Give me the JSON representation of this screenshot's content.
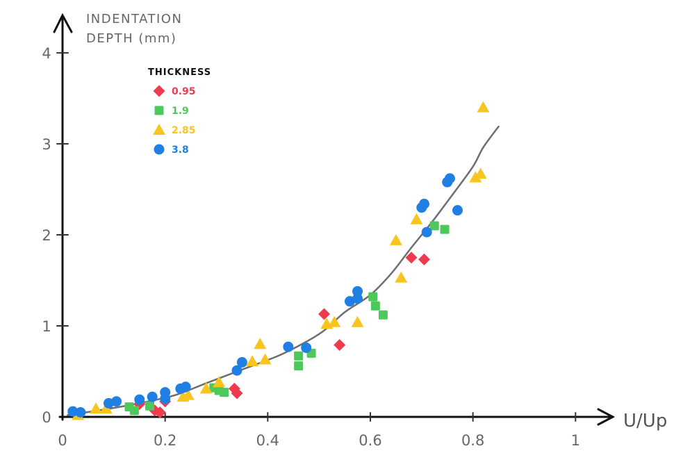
{
  "chart_data": {
    "type": "scatter",
    "xlabel": "U/Up",
    "ylabel": "INDENTATION DEPTH (mm)",
    "xlim": [
      0,
      1.07
    ],
    "ylim": [
      0,
      4.39
    ],
    "x_ticks": [
      0,
      0.2,
      0.4,
      0.6,
      0.8,
      1
    ],
    "x_tick_labels": [
      "0",
      "0.2",
      "0.4",
      "0.6",
      "0.8",
      "1"
    ],
    "y_ticks": [
      0,
      1,
      2,
      3,
      4
    ],
    "y_tick_labels": [
      "0",
      "1",
      "2",
      "3",
      "4"
    ],
    "grid": false,
    "legend": {
      "title": "THICKNESS",
      "position": "top-left"
    },
    "series": [
      {
        "name": "0.95",
        "marker": "diamond",
        "color": "#EE3B4E",
        "x": [
          0.15,
          0.18,
          0.19,
          0.2,
          0.335,
          0.34,
          0.51,
          0.54,
          0.68,
          0.705
        ],
        "y": [
          0.14,
          0.07,
          0.05,
          0.17,
          0.31,
          0.26,
          1.13,
          0.79,
          1.75,
          1.73
        ]
      },
      {
        "name": "1.9",
        "marker": "square",
        "color": "#4DC95C",
        "x": [
          0.13,
          0.14,
          0.17,
          0.295,
          0.305,
          0.315,
          0.46,
          0.46,
          0.485,
          0.605,
          0.61,
          0.625,
          0.725,
          0.745
        ],
        "y": [
          0.11,
          0.07,
          0.12,
          0.32,
          0.29,
          0.27,
          0.67,
          0.56,
          0.7,
          1.32,
          1.22,
          1.12,
          2.1,
          2.06
        ]
      },
      {
        "name": "2.85",
        "marker": "triangle",
        "color": "#F7C51E",
        "x": [
          0.03,
          0.065,
          0.085,
          0.235,
          0.245,
          0.28,
          0.305,
          0.37,
          0.385,
          0.395,
          0.515,
          0.53,
          0.575,
          0.65,
          0.66,
          0.69,
          0.805,
          0.815,
          0.82
        ],
        "y": [
          0.02,
          0.09,
          0.09,
          0.22,
          0.24,
          0.31,
          0.38,
          0.61,
          0.8,
          0.63,
          1.02,
          1.04,
          1.04,
          1.94,
          1.53,
          2.17,
          2.63,
          2.67,
          3.4
        ]
      },
      {
        "name": "3.8",
        "marker": "circle",
        "color": "#1F7FE3",
        "x": [
          0.02,
          0.035,
          0.09,
          0.105,
          0.15,
          0.175,
          0.2,
          0.2,
          0.23,
          0.24,
          0.34,
          0.35,
          0.44,
          0.475,
          0.56,
          0.575,
          0.575,
          0.7,
          0.705,
          0.71,
          0.75,
          0.755,
          0.77
        ],
        "y": [
          0.06,
          0.05,
          0.15,
          0.17,
          0.19,
          0.22,
          0.2,
          0.27,
          0.31,
          0.33,
          0.51,
          0.6,
          0.77,
          0.76,
          1.27,
          1.38,
          1.3,
          2.3,
          2.34,
          2.03,
          2.58,
          2.62,
          2.27
        ]
      }
    ],
    "fit_line": {
      "color": "#6E6E6E",
      "x": [
        0.01,
        0.08,
        0.15,
        0.22,
        0.28,
        0.35,
        0.42,
        0.47,
        0.51,
        0.55,
        0.6,
        0.64,
        0.68,
        0.72,
        0.76,
        0.8,
        0.82,
        0.85
      ],
      "y": [
        0.02,
        0.08,
        0.15,
        0.24,
        0.37,
        0.52,
        0.67,
        0.81,
        0.95,
        1.15,
        1.34,
        1.57,
        1.86,
        2.14,
        2.44,
        2.75,
        2.96,
        3.19
      ]
    }
  }
}
